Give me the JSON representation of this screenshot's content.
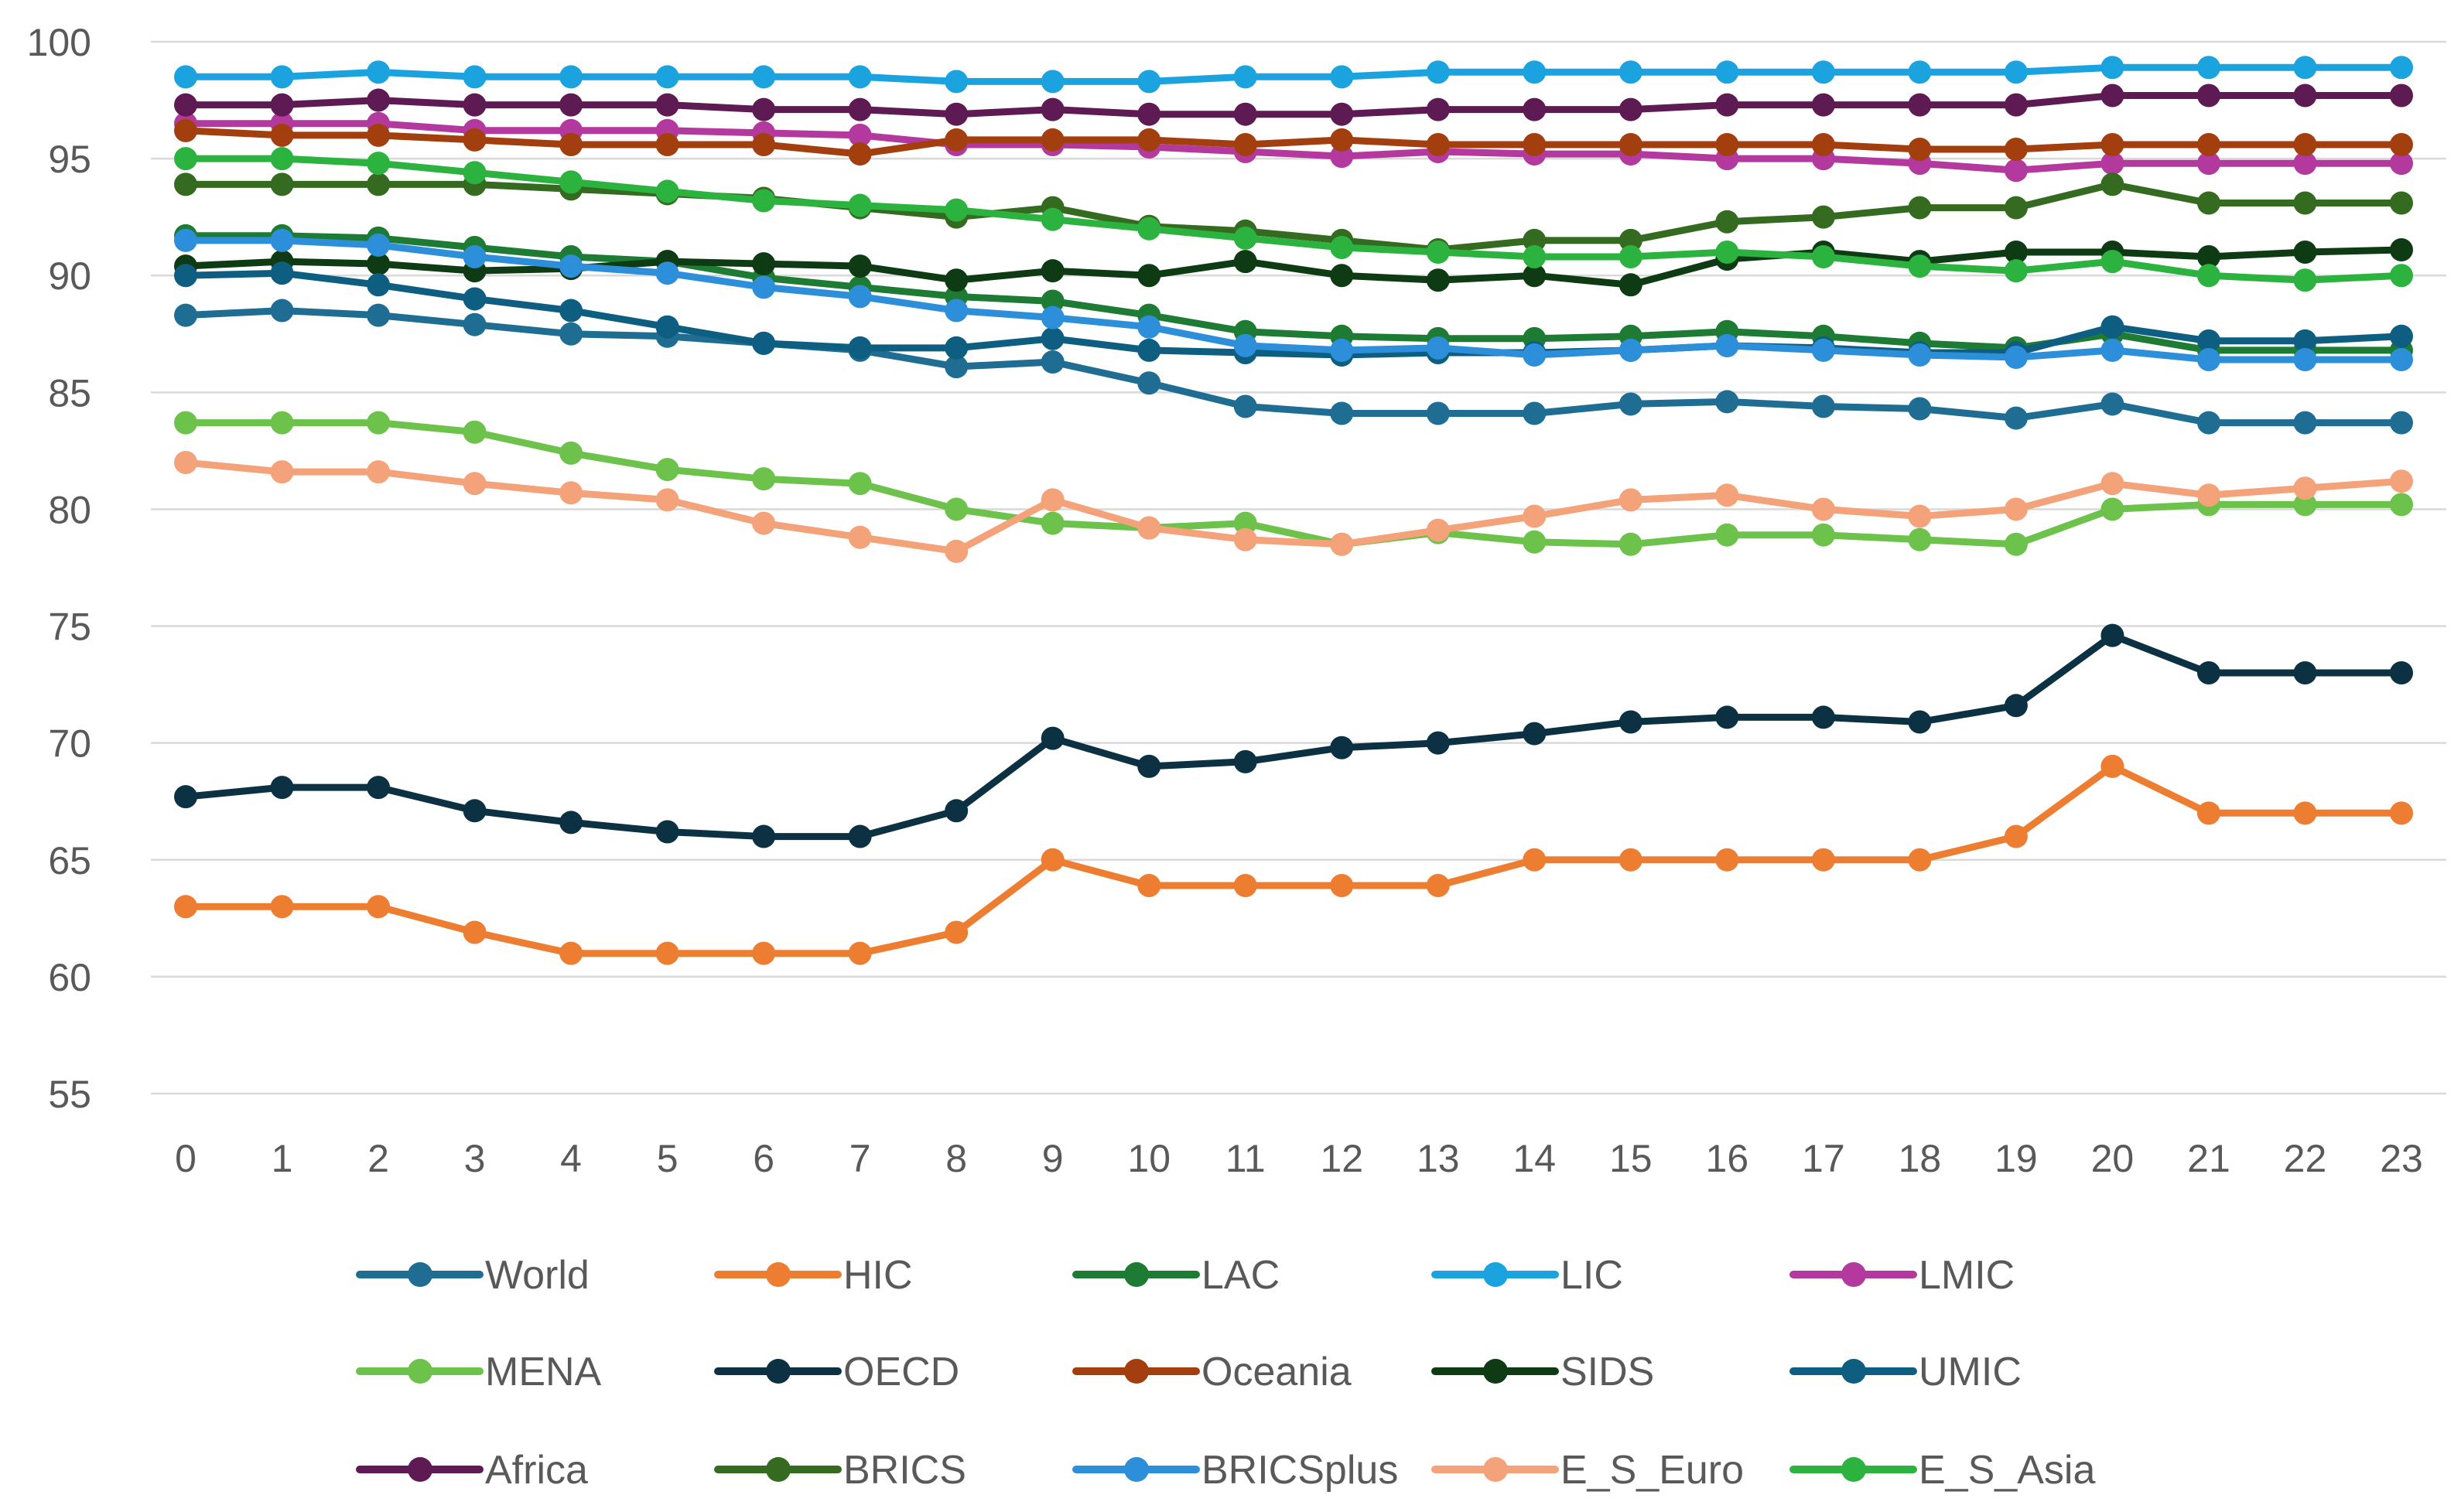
{
  "chart_data": {
    "type": "line",
    "title": "",
    "xlabel": "",
    "ylabel": "",
    "ylim": [
      55,
      100
    ],
    "yticks": [
      55,
      60,
      65,
      70,
      75,
      80,
      85,
      90,
      95,
      100
    ],
    "x": [
      0,
      1,
      2,
      3,
      4,
      5,
      6,
      7,
      8,
      9,
      10,
      11,
      12,
      13,
      14,
      15,
      16,
      17,
      18,
      19,
      20,
      21,
      22,
      23
    ],
    "grid": true,
    "legend_position": "bottom",
    "series": [
      {
        "name": "World",
        "color": "#1f6d93",
        "values": [
          88.3,
          88.5,
          88.3,
          87.9,
          87.5,
          87.4,
          87.1,
          86.8,
          86.1,
          86.3,
          85.4,
          84.4,
          84.1,
          84.1,
          84.1,
          84.5,
          84.6,
          84.4,
          84.3,
          83.9,
          84.5,
          83.7,
          83.7,
          83.7
        ]
      },
      {
        "name": "HIC",
        "color": "#ed7d31",
        "values": [
          63,
          63,
          63,
          61.9,
          61,
          61,
          61,
          61,
          61.9,
          65,
          63.9,
          63.9,
          63.9,
          63.9,
          65,
          65,
          65,
          65,
          65,
          66,
          69,
          67,
          67,
          67
        ]
      },
      {
        "name": "LAC",
        "color": "#1e7b34",
        "values": [
          91.7,
          91.7,
          91.6,
          91.2,
          90.8,
          90.6,
          89.9,
          89.5,
          89.1,
          88.9,
          88.3,
          87.6,
          87.4,
          87.3,
          87.3,
          87.4,
          87.6,
          87.4,
          87.1,
          86.9,
          87.5,
          86.8,
          86.8,
          86.8
        ]
      },
      {
        "name": "LIC",
        "color": "#1aa3df",
        "values": [
          98.5,
          98.5,
          98.7,
          98.5,
          98.5,
          98.5,
          98.5,
          98.5,
          98.3,
          98.3,
          98.3,
          98.5,
          98.5,
          98.7,
          98.7,
          98.7,
          98.7,
          98.7,
          98.7,
          98.7,
          98.9,
          98.9,
          98.9,
          98.9
        ]
      },
      {
        "name": "LMIC",
        "color": "#b3399e",
        "values": [
          96.5,
          96.5,
          96.5,
          96.2,
          96.2,
          96.2,
          96.1,
          96,
          95.6,
          95.6,
          95.5,
          95.3,
          95.1,
          95.3,
          95.2,
          95.2,
          95,
          95,
          94.8,
          94.5,
          94.8,
          94.8,
          94.8,
          94.8
        ]
      },
      {
        "name": "MENA",
        "color": "#6cc24a",
        "values": [
          83.7,
          83.7,
          83.7,
          83.3,
          82.4,
          81.7,
          81.3,
          81.1,
          80,
          79.4,
          79.2,
          79.4,
          78.5,
          79,
          78.6,
          78.5,
          78.9,
          78.9,
          78.7,
          78.5,
          80,
          80.2,
          80.2,
          80.2
        ]
      },
      {
        "name": "OECD",
        "color": "#0b3142",
        "values": [
          67.7,
          68.1,
          68.1,
          67.1,
          66.6,
          66.2,
          66,
          66,
          67.1,
          70.2,
          69,
          69.2,
          69.8,
          70,
          70.4,
          70.9,
          71.1,
          71.1,
          70.9,
          71.6,
          74.6,
          73,
          73,
          73
        ]
      },
      {
        "name": "Oceania",
        "color": "#a33f0f",
        "values": [
          96.2,
          96,
          96,
          95.8,
          95.6,
          95.6,
          95.6,
          95.2,
          95.8,
          95.8,
          95.8,
          95.6,
          95.8,
          95.6,
          95.6,
          95.6,
          95.6,
          95.6,
          95.4,
          95.4,
          95.6,
          95.6,
          95.6,
          95.6
        ]
      },
      {
        "name": "SIDS",
        "color": "#0e3b13",
        "values": [
          90.4,
          90.6,
          90.5,
          90.2,
          90.3,
          90.6,
          90.5,
          90.4,
          89.8,
          90.2,
          90,
          90.6,
          90,
          89.8,
          90,
          89.6,
          90.7,
          91,
          90.6,
          91,
          91,
          90.8,
          91,
          91.1
        ]
      },
      {
        "name": "UMIC",
        "color": "#0e5e82",
        "values": [
          90,
          90.1,
          89.6,
          89,
          88.5,
          87.8,
          87.1,
          86.9,
          86.9,
          87.3,
          86.8,
          86.7,
          86.6,
          86.7,
          86.7,
          86.8,
          87,
          86.9,
          86.7,
          86.7,
          87.8,
          87.2,
          87.2,
          87.4
        ]
      },
      {
        "name": "Africa",
        "color": "#5e1a52",
        "values": [
          97.3,
          97.3,
          97.5,
          97.3,
          97.3,
          97.3,
          97.1,
          97.1,
          96.9,
          97.1,
          96.9,
          96.9,
          96.9,
          97.1,
          97.1,
          97.1,
          97.3,
          97.3,
          97.3,
          97.3,
          97.7,
          97.7,
          97.7,
          97.7
        ]
      },
      {
        "name": "BRICS",
        "color": "#356b20",
        "values": [
          93.9,
          93.9,
          93.9,
          93.9,
          93.7,
          93.5,
          93.3,
          92.9,
          92.5,
          92.9,
          92.1,
          91.9,
          91.5,
          91.1,
          91.5,
          91.5,
          92.3,
          92.5,
          92.9,
          92.9,
          93.9,
          93.1,
          93.1,
          93.1
        ]
      },
      {
        "name": "BRICSplus",
        "color": "#2d8fd9",
        "values": [
          91.5,
          91.5,
          91.3,
          90.8,
          90.4,
          90.1,
          89.5,
          89.1,
          88.5,
          88.2,
          87.8,
          87,
          86.8,
          86.9,
          86.6,
          86.8,
          87,
          86.8,
          86.6,
          86.5,
          86.8,
          86.4,
          86.4,
          86.4
        ]
      },
      {
        "name": "E_S_Euro",
        "color": "#f4a27a",
        "values": [
          82,
          81.6,
          81.6,
          81.1,
          80.7,
          80.4,
          79.4,
          78.8,
          78.2,
          80.4,
          79.2,
          78.7,
          78.5,
          79.1,
          79.7,
          80.4,
          80.6,
          80,
          79.7,
          80,
          81.1,
          80.6,
          80.9,
          81.2
        ]
      },
      {
        "name": "E_S_Asia",
        "color": "#2cb33f",
        "values": [
          95,
          95,
          94.8,
          94.4,
          94,
          93.6,
          93.2,
          93,
          92.8,
          92.4,
          92,
          91.6,
          91.2,
          91,
          90.8,
          90.8,
          91,
          90.8,
          90.4,
          90.2,
          90.6,
          90,
          89.8,
          90
        ]
      }
    ]
  }
}
